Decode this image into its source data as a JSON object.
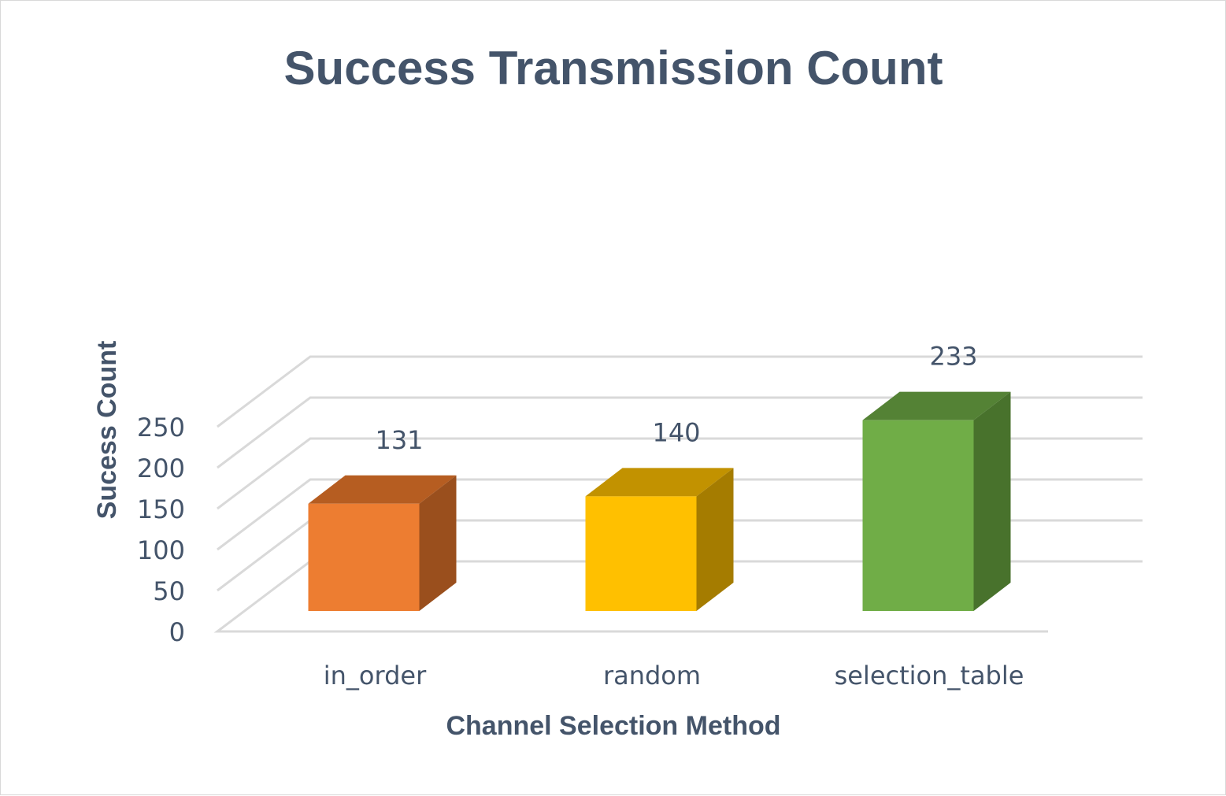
{
  "chart_data": {
    "type": "bar",
    "style": "3d-column",
    "title": "Success Transmission Count",
    "xlabel": "Channel Selection Method",
    "ylabel": "Sucess Count",
    "categories": [
      "in_order",
      "random",
      "selection_table"
    ],
    "values": [
      131,
      140,
      233
    ],
    "data_labels": [
      "131",
      "140",
      "233"
    ],
    "ylim": [
      0,
      250
    ],
    "y_ticks": [
      "0",
      "50",
      "100",
      "150",
      "200",
      "250"
    ],
    "grid": true,
    "legend": "none",
    "colors": [
      {
        "front": "#ed7d31",
        "top": "#b65d21",
        "side": "#9a4f1d"
      },
      {
        "front": "#ffc000",
        "top": "#c29200",
        "side": "#a57c00"
      },
      {
        "front": "#70ad47",
        "top": "#548235",
        "side": "#48722c"
      }
    ]
  }
}
